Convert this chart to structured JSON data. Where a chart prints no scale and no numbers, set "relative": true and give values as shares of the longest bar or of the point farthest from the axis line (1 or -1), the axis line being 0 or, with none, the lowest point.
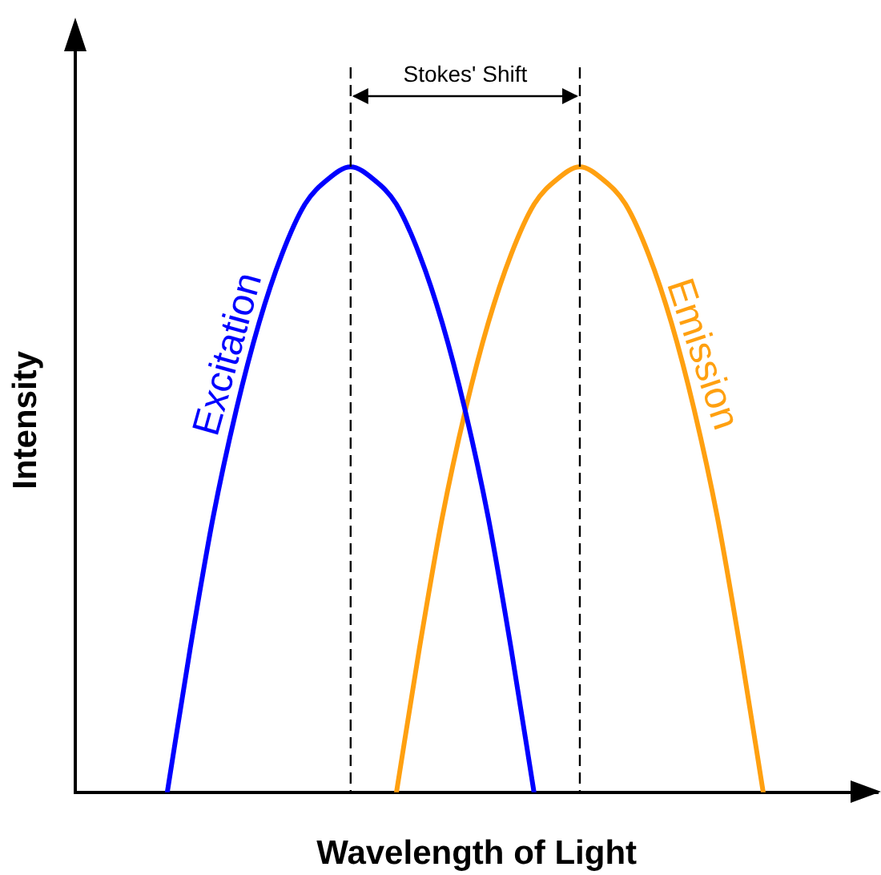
{
  "chart_data": {
    "type": "line",
    "relative": true,
    "xlabel": "Wavelength of Light",
    "ylabel": "Intensity",
    "categories": [
      null,
      null,
      null,
      null,
      null,
      null,
      null,
      null,
      null,
      null,
      null,
      null,
      null,
      null,
      null,
      null,
      null,
      null,
      null,
      null,
      null,
      null,
      null,
      null,
      null,
      null,
      null,
      null,
      null,
      null,
      null,
      null,
      null,
      null,
      null,
      null
    ],
    "series": [
      {
        "name": "Excitation",
        "color": "#0000ff",
        "values": [
          null,
          null,
          null,
          null,
          0,
          0.23,
          0.44,
          0.61,
          0.75,
          0.86,
          0.94,
          0.98,
          1,
          0.98,
          0.94,
          0.86,
          0.75,
          0.61,
          0.44,
          0.23,
          0,
          null,
          null,
          null,
          null,
          null,
          null,
          null,
          null,
          null,
          null,
          null,
          null,
          null,
          null,
          null
        ]
      },
      {
        "name": "Emission",
        "color": "#ffa010",
        "values": [
          null,
          null,
          null,
          null,
          null,
          null,
          null,
          null,
          null,
          null,
          null,
          null,
          null,
          null,
          0,
          0.23,
          0.44,
          0.61,
          0.75,
          0.86,
          0.94,
          0.98,
          1,
          0.98,
          0.94,
          0.86,
          0.75,
          0.61,
          0.44,
          0.23,
          0,
          null,
          null,
          null,
          null,
          null
        ]
      }
    ],
    "annotations": [
      "Stokes' Shift"
    ],
    "legend": false,
    "grid": false,
    "marker": "none",
    "line_style": "solid"
  }
}
